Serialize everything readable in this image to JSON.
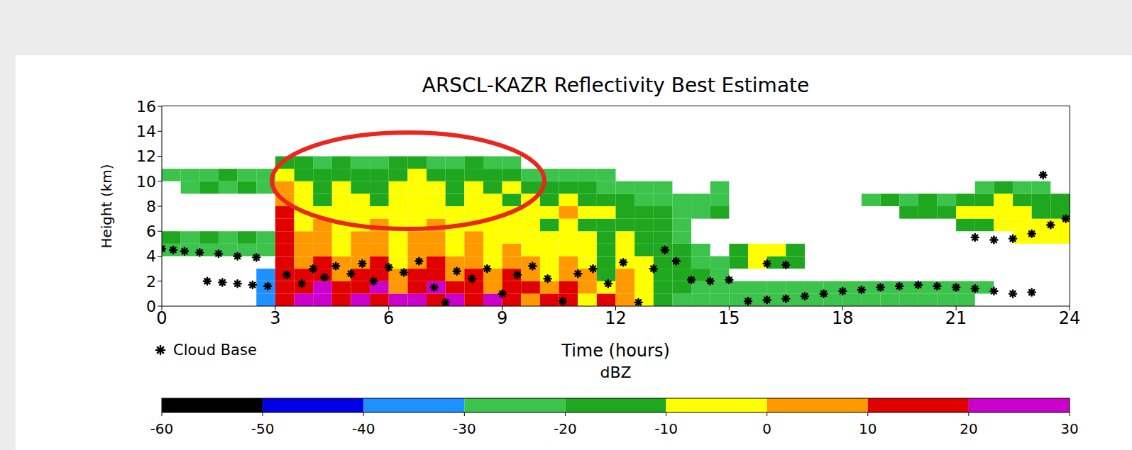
{
  "chart_data": {
    "type": "heatmap",
    "title": "ARSCL-KAZR Reflectivity Best Estimate",
    "x_label": "Time (hours)",
    "y_label": "Height (km)",
    "xlim": [
      0,
      24
    ],
    "xticks": [
      0,
      3,
      6,
      9,
      12,
      15,
      18,
      21,
      24
    ],
    "ylim": [
      0,
      16
    ],
    "yticks": [
      0,
      2,
      4,
      6,
      8,
      10,
      12,
      14,
      16
    ],
    "x_bins": [
      0,
      0.5,
      1,
      1.5,
      2,
      2.5,
      3,
      3.5,
      4,
      4.5,
      5,
      5.5,
      6,
      6.5,
      7,
      7.5,
      8,
      8.5,
      9,
      9.5,
      10,
      10.5,
      11,
      11.5,
      12,
      12.5,
      13,
      13.5,
      14,
      14.5,
      15,
      15.5,
      16,
      16.5,
      17,
      17.5,
      18,
      18.5,
      19,
      19.5,
      20,
      20.5,
      21,
      21.5,
      22,
      22.5,
      23,
      23.5,
      24
    ],
    "y_bins": [
      0,
      1,
      2,
      3,
      4,
      5,
      6,
      7,
      8,
      9,
      10,
      11,
      12
    ],
    "cells": [
      [
        null,
        null,
        null,
        null,
        null,
        -40,
        15,
        20,
        25,
        15,
        20,
        10,
        20,
        25,
        15,
        20,
        10,
        20,
        15,
        5,
        15,
        10,
        -5,
        10,
        0,
        -10,
        -20,
        -25,
        -30,
        -30,
        -30,
        -30,
        -30,
        -30,
        -30,
        -30,
        -30,
        -30,
        -30,
        -30,
        -30,
        -30,
        -30,
        null,
        null,
        null,
        null,
        null
      ],
      [
        null,
        null,
        null,
        null,
        null,
        -35,
        15,
        15,
        20,
        10,
        15,
        20,
        5,
        15,
        20,
        10,
        15,
        5,
        15,
        10,
        0,
        10,
        5,
        -10,
        5,
        -5,
        -15,
        -20,
        -25,
        -25,
        -25,
        -25,
        -25,
        -25,
        -25,
        -25,
        -25,
        -25,
        -25,
        -25,
        -25,
        -25,
        -25,
        -25,
        null,
        null,
        null,
        null
      ],
      [
        null,
        null,
        null,
        null,
        null,
        -40,
        10,
        10,
        15,
        5,
        10,
        15,
        0,
        10,
        15,
        5,
        10,
        0,
        10,
        5,
        -5,
        5,
        0,
        -15,
        0,
        -10,
        -15,
        -20,
        -20,
        -25,
        null,
        null,
        null,
        null,
        null,
        null,
        null,
        null,
        null,
        null,
        null,
        null,
        null,
        null,
        null,
        null,
        null,
        null
      ],
      [
        null,
        null,
        null,
        null,
        null,
        null,
        10,
        5,
        10,
        0,
        5,
        10,
        -5,
        5,
        10,
        0,
        5,
        -5,
        5,
        0,
        -10,
        0,
        -5,
        -15,
        -5,
        -10,
        -15,
        -20,
        -25,
        -25,
        -20,
        -10,
        -15,
        -20,
        null,
        null,
        null,
        null,
        null,
        null,
        null,
        null,
        null,
        null,
        null,
        null,
        null,
        null
      ],
      [
        -30,
        -30,
        -30,
        -30,
        -30,
        -25,
        10,
        0,
        5,
        -5,
        0,
        5,
        -10,
        0,
        5,
        -5,
        0,
        -10,
        0,
        -5,
        -10,
        -5,
        -10,
        -15,
        -10,
        -15,
        -20,
        -20,
        -25,
        null,
        -15,
        -5,
        -10,
        -15,
        null,
        null,
        null,
        null,
        null,
        null,
        null,
        null,
        null,
        null,
        null,
        null,
        null,
        null
      ],
      [
        -20,
        -25,
        -20,
        -25,
        -20,
        -25,
        15,
        0,
        5,
        -5,
        0,
        5,
        -5,
        0,
        0,
        -5,
        0,
        -10,
        -5,
        -5,
        -10,
        -5,
        -10,
        -15,
        -10,
        -15,
        -20,
        -25,
        null,
        null,
        null,
        null,
        null,
        null,
        null,
        null,
        null,
        null,
        null,
        null,
        null,
        null,
        null,
        null,
        null,
        -10,
        -5,
        -10
      ],
      [
        null,
        null,
        null,
        null,
        null,
        null,
        15,
        -5,
        0,
        -10,
        -5,
        0,
        -10,
        -5,
        0,
        -10,
        -5,
        -10,
        -5,
        -10,
        -15,
        -10,
        -15,
        -20,
        -15,
        -20,
        -20,
        -25,
        null,
        null,
        null,
        null,
        null,
        null,
        null,
        null,
        null,
        null,
        null,
        null,
        null,
        null,
        -20,
        -15,
        -10,
        -5,
        -5,
        -10
      ],
      [
        null,
        null,
        null,
        null,
        null,
        null,
        10,
        -10,
        -5,
        -10,
        -10,
        -5,
        -10,
        -10,
        -5,
        -10,
        -10,
        -5,
        -10,
        -10,
        -5,
        0,
        -5,
        -10,
        -15,
        -20,
        -20,
        -25,
        -25,
        -20,
        null,
        null,
        null,
        null,
        null,
        null,
        null,
        null,
        null,
        -20,
        -15,
        -20,
        -10,
        -10,
        -5,
        -10,
        -15,
        -20
      ],
      [
        null,
        null,
        null,
        null,
        null,
        null,
        5,
        -10,
        -15,
        -10,
        -10,
        -15,
        -10,
        -5,
        -10,
        -15,
        -10,
        -10,
        -15,
        -10,
        -15,
        -10,
        -15,
        -20,
        -20,
        -25,
        -25,
        -25,
        -25,
        -25,
        null,
        null,
        null,
        null,
        null,
        null,
        null,
        -25,
        -20,
        -25,
        -20,
        -25,
        -15,
        -15,
        -10,
        -15,
        -20,
        -20
      ],
      [
        null,
        -25,
        -20,
        -25,
        -20,
        -25,
        0,
        -10,
        -15,
        -10,
        -20,
        -15,
        -10,
        -5,
        -10,
        -15,
        -10,
        -15,
        -10,
        -20,
        -15,
        -20,
        -20,
        -25,
        -25,
        -30,
        -30,
        null,
        null,
        -30,
        null,
        null,
        null,
        null,
        null,
        null,
        null,
        null,
        null,
        null,
        null,
        null,
        null,
        -25,
        -20,
        -25,
        -25,
        null
      ],
      [
        -30,
        -25,
        -25,
        -20,
        -25,
        -30,
        -5,
        -15,
        -20,
        -15,
        -20,
        -20,
        -15,
        -10,
        -15,
        -20,
        -15,
        -20,
        -20,
        -25,
        -25,
        -25,
        -30,
        -30,
        null,
        null,
        null,
        null,
        null,
        null,
        null,
        null,
        null,
        null,
        null,
        null,
        null,
        null,
        null,
        null,
        null,
        null,
        null,
        null,
        null,
        null,
        null,
        null
      ],
      [
        null,
        null,
        null,
        null,
        null,
        null,
        -15,
        -20,
        -25,
        -20,
        -25,
        -25,
        -20,
        -20,
        -25,
        -25,
        -20,
        -25,
        -30,
        null,
        null,
        null,
        null,
        null,
        null,
        null,
        null,
        null,
        null,
        null,
        null,
        null,
        null,
        null,
        null,
        null,
        null,
        null,
        null,
        null,
        null,
        null,
        null,
        null,
        null,
        null,
        null,
        null
      ]
    ],
    "colorbar": {
      "label": "dBZ",
      "range": [
        -60,
        30
      ],
      "ticks": [
        -60,
        -50,
        -40,
        -30,
        -20,
        -10,
        0,
        10,
        20,
        30
      ],
      "colors": [
        "#000000",
        "#0000e6",
        "#1e90ff",
        "#3cc34b",
        "#1fa81f",
        "#ffff00",
        "#ff9900",
        "#e00000",
        "#cc00cc"
      ]
    },
    "legend": "lower left",
    "series": [
      {
        "name": "Cloud Base",
        "type": "scatter",
        "marker": "asterisk",
        "color": "#000000",
        "x": [
          0.0,
          0.3,
          0.6,
          1.0,
          1.5,
          2.0,
          2.5,
          1.2,
          1.6,
          2.0,
          2.4,
          2.8,
          3.3,
          3.7,
          4.0,
          4.3,
          4.6,
          5.0,
          5.3,
          5.6,
          6.0,
          6.4,
          6.8,
          7.2,
          7.5,
          7.8,
          8.2,
          8.6,
          9.0,
          9.4,
          9.8,
          10.2,
          10.6,
          11.0,
          11.4,
          11.8,
          12.2,
          12.6,
          13.0,
          13.3,
          13.6,
          14.0,
          14.5,
          15.0,
          15.5,
          16.0,
          16.5,
          17.0,
          17.5,
          18.0,
          18.5,
          19.0,
          19.5,
          20.0,
          20.5,
          21.0,
          21.5,
          16.0,
          16.5,
          22.0,
          22.5,
          23.0,
          21.5,
          22.0,
          22.5,
          23.0,
          23.5,
          23.9,
          23.3
        ],
        "y": [
          4.6,
          4.5,
          4.4,
          4.3,
          4.2,
          4.0,
          3.9,
          2.0,
          1.9,
          1.8,
          1.7,
          1.6,
          2.5,
          1.8,
          3.0,
          2.3,
          3.2,
          2.6,
          3.4,
          2.0,
          3.1,
          2.7,
          3.6,
          1.5,
          0.3,
          2.8,
          2.2,
          3.0,
          1.0,
          2.5,
          3.2,
          2.2,
          0.4,
          2.6,
          3.0,
          1.8,
          3.5,
          0.3,
          3.0,
          4.5,
          3.6,
          2.1,
          2.0,
          2.1,
          0.4,
          0.5,
          0.6,
          0.8,
          1.0,
          1.2,
          1.3,
          1.5,
          1.6,
          1.7,
          1.6,
          1.5,
          1.4,
          3.4,
          3.3,
          1.2,
          1.0,
          1.1,
          5.5,
          5.3,
          5.4,
          5.8,
          6.5,
          7.0,
          10.5
        ]
      }
    ]
  }
}
